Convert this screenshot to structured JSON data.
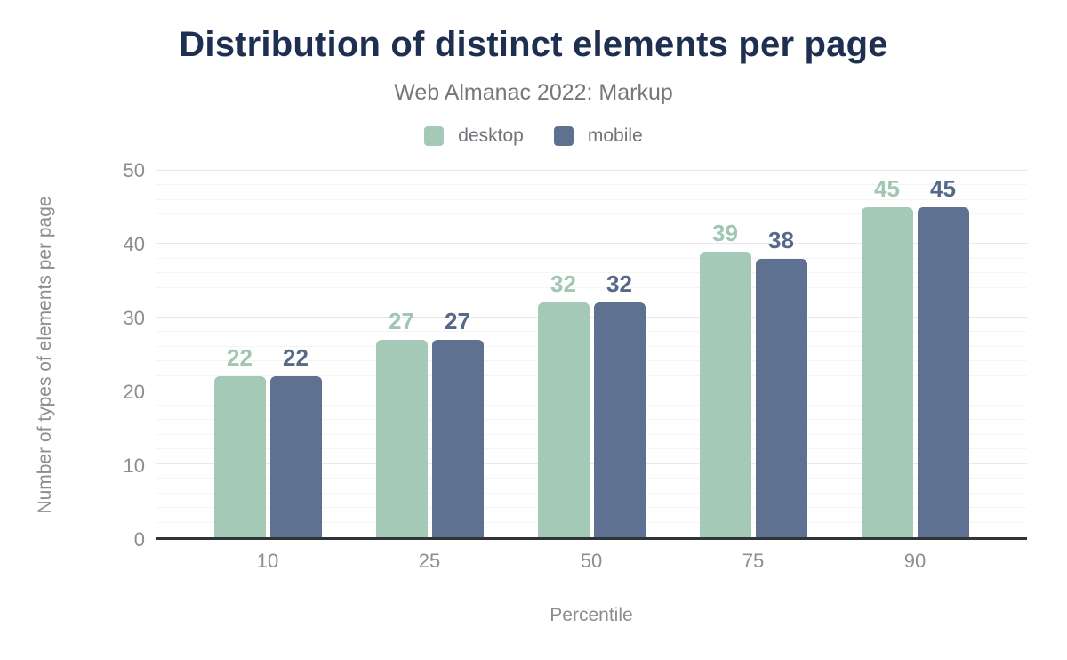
{
  "header": {
    "title": "Distribution of distinct elements per page",
    "subtitle": "Web Almanac 2022: Markup"
  },
  "legend": [
    {
      "label": "desktop",
      "color": "#a5c9b7"
    },
    {
      "label": "mobile",
      "color": "#5e7190"
    }
  ],
  "chart_data": {
    "type": "bar",
    "title": "Distribution of distinct elements per page",
    "subtitle": "Web Almanac 2022: Markup",
    "categories": [
      "10",
      "25",
      "50",
      "75",
      "90"
    ],
    "series": [
      {
        "name": "desktop",
        "color": "#a5c9b7",
        "label_color": "#a1c6b2",
        "values": [
          22,
          27,
          32,
          39,
          45
        ]
      },
      {
        "name": "mobile",
        "color": "#5e7190",
        "label_color": "#56698a",
        "values": [
          22,
          27,
          32,
          38,
          45
        ]
      }
    ],
    "xlabel": "Percentile",
    "ylabel": "Number of types of elements per page",
    "ylim": [
      0,
      50
    ],
    "yticks": [
      0,
      10,
      20,
      30,
      40,
      50
    ],
    "grid": true,
    "grid_minor_step": 2,
    "grid_major_step": 10,
    "legend_position": "top",
    "axis_color": "#2f3437",
    "tick_color": "#8b8e91"
  }
}
